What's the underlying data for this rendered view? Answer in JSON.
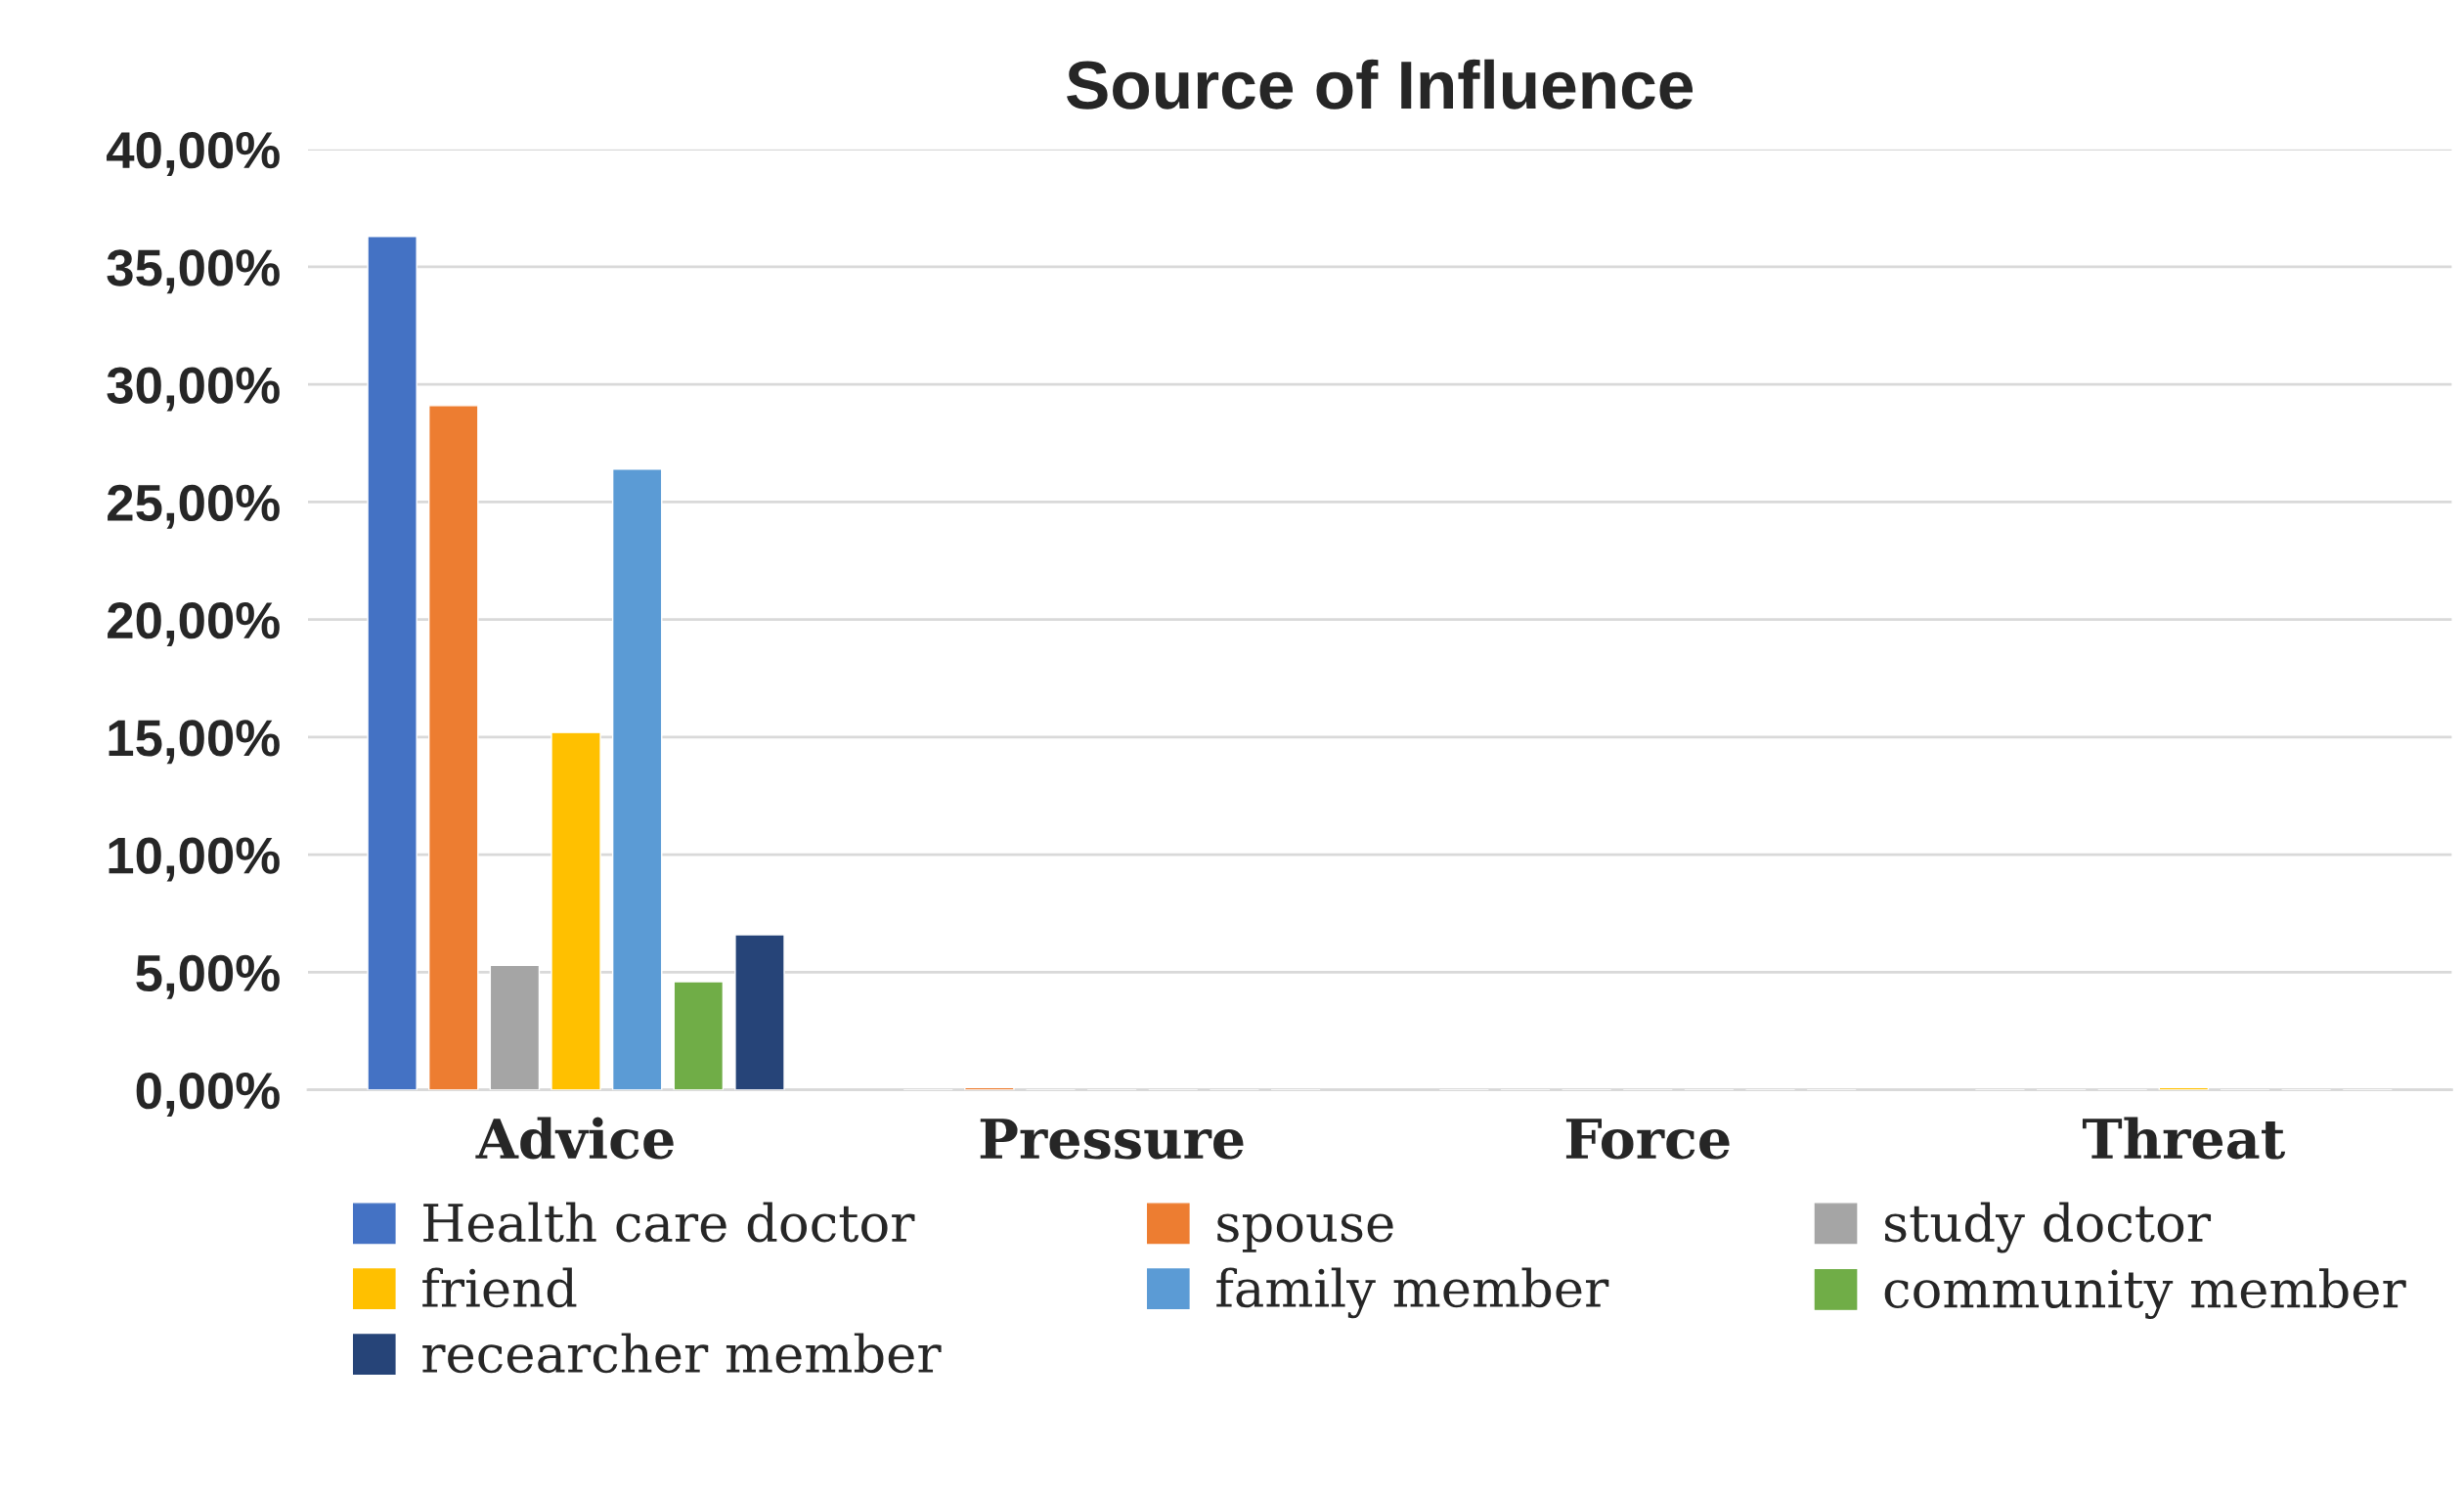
{
  "chart_data": {
    "type": "bar",
    "title": "Source of Influence",
    "categories": [
      "Advice",
      "Pressure",
      "Force",
      "Threat"
    ],
    "series": [
      {
        "name": "Health care doctor",
        "color": "#4472c4",
        "values": [
          36.3,
          0,
          0,
          0
        ]
      },
      {
        "name": "spouse",
        "color": "#ed7d31",
        "values": [
          29.1,
          0.1,
          0,
          0
        ]
      },
      {
        "name": "study doctor",
        "color": "#a5a5a5",
        "values": [
          5.3,
          0,
          0,
          0
        ]
      },
      {
        "name": "friend",
        "color": "#ffc000",
        "values": [
          15.2,
          0,
          0,
          0.1
        ]
      },
      {
        "name": "family member",
        "color": "#5b9bd5",
        "values": [
          26.4,
          0,
          0,
          0
        ]
      },
      {
        "name": "community member",
        "color": "#70ad47",
        "values": [
          4.6,
          0,
          0,
          0
        ]
      },
      {
        "name": "recearcher member",
        "color": "#264478",
        "values": [
          6.6,
          0,
          0,
          0
        ]
      }
    ],
    "ylim": [
      0,
      40
    ],
    "yticks": [
      {
        "value": 0,
        "label": "0,00%"
      },
      {
        "value": 5,
        "label": "5,00%"
      },
      {
        "value": 10,
        "label": "10,00%"
      },
      {
        "value": 15,
        "label": "15,00%"
      },
      {
        "value": 20,
        "label": "20,00%"
      },
      {
        "value": 25,
        "label": "25,00%"
      },
      {
        "value": 30,
        "label": "30,00%"
      },
      {
        "value": 35,
        "label": "35,00%"
      },
      {
        "value": 40,
        "label": "40,00%"
      }
    ],
    "grid": "y",
    "legend": "bottom"
  }
}
